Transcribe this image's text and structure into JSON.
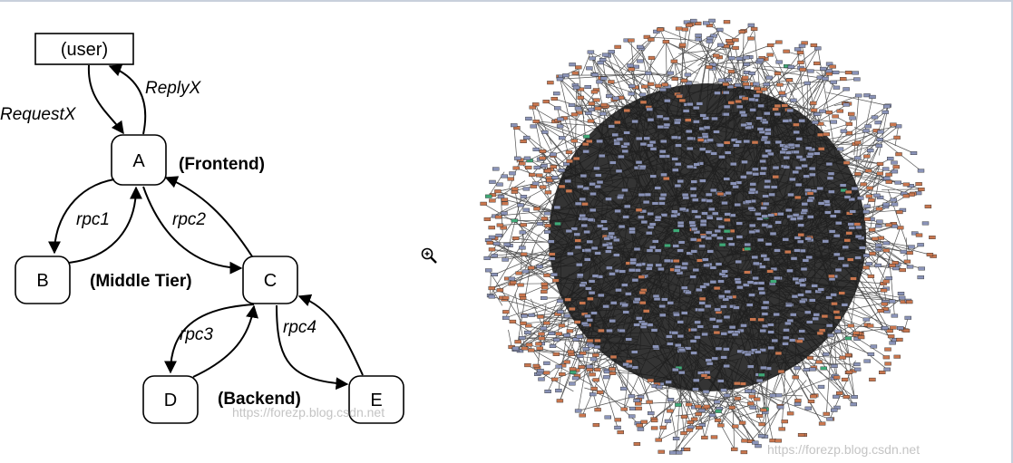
{
  "diagram": {
    "nodes": {
      "user": "(user)",
      "a": "A",
      "b": "B",
      "c": "C",
      "d": "D",
      "e": "E"
    },
    "edges": {
      "request": "RequestX",
      "reply": "ReplyX",
      "rpc1": "rpc1",
      "rpc2": "rpc2",
      "rpc3": "rpc3",
      "rpc4": "rpc4"
    },
    "tiers": {
      "frontend": "(Frontend)",
      "middle": "(Middle Tier)",
      "backend": "(Backend)"
    }
  },
  "watermarks": {
    "left": "https://forezp.blog.csdn.net",
    "right": "https://forezp.blog.csdn.net"
  },
  "graph_colors": {
    "service_node": "#8a93b8",
    "secondary_node": "#c9764e",
    "accent_node": "#3fa977",
    "edge": "#1a1a1a"
  },
  "cursor_icon": "zoom-in-icon"
}
